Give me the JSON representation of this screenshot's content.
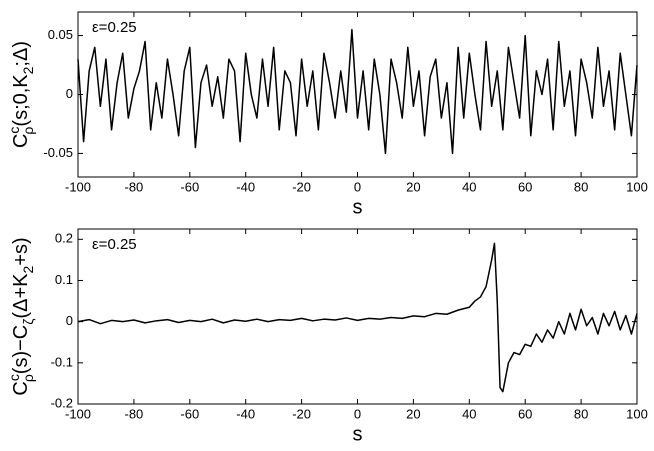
{
  "chart_data": [
    {
      "type": "line",
      "xlabel": "s",
      "ylabel": [
        "C",
        "c",
        "ρ",
        "(s;0,K",
        "2",
        ";Δ)"
      ],
      "annotation": "ε=0.25",
      "xlim": [
        -100,
        100
      ],
      "xticks": [
        -100,
        -80,
        -60,
        -40,
        -20,
        0,
        20,
        40,
        60,
        80,
        100
      ],
      "ylim": [
        -0.07,
        0.07
      ],
      "yticks": [
        -0.05,
        0,
        0.05
      ],
      "x": [
        -100,
        -98,
        -96,
        -94,
        -92,
        -90,
        -88,
        -86,
        -84,
        -82,
        -80,
        -78,
        -76,
        -74,
        -72,
        -70,
        -68,
        -66,
        -64,
        -62,
        -60,
        -58,
        -56,
        -54,
        -52,
        -50,
        -48,
        -46,
        -44,
        -42,
        -40,
        -38,
        -36,
        -34,
        -32,
        -30,
        -28,
        -26,
        -24,
        -22,
        -20,
        -18,
        -16,
        -14,
        -12,
        -10,
        -8,
        -6,
        -4,
        -2,
        0,
        2,
        4,
        6,
        8,
        10,
        12,
        14,
        16,
        18,
        20,
        22,
        24,
        26,
        28,
        30,
        32,
        34,
        36,
        38,
        40,
        42,
        44,
        46,
        48,
        50,
        52,
        54,
        56,
        58,
        60,
        62,
        64,
        66,
        68,
        70,
        72,
        74,
        76,
        78,
        80,
        82,
        84,
        86,
        88,
        90,
        92,
        94,
        96,
        98,
        100
      ],
      "series": [
        {
          "color": "#000000",
          "values": [
            0.03,
            -0.04,
            0.02,
            0.04,
            -0.01,
            0.03,
            -0.03,
            0.01,
            0.035,
            -0.02,
            0.005,
            0.02,
            0.045,
            -0.03,
            0.01,
            -0.02,
            0.03,
            0.0,
            -0.035,
            0.02,
            0.04,
            -0.045,
            0.01,
            0.025,
            -0.01,
            0.015,
            -0.02,
            0.03,
            0.02,
            -0.04,
            0.035,
            0.0,
            -0.02,
            0.03,
            -0.01,
            0.04,
            -0.03,
            0.02,
            0.01,
            -0.035,
            0.03,
            -0.01,
            0.02,
            -0.03,
            0.035,
            0.01,
            -0.02,
            0.02,
            -0.015,
            0.055,
            -0.02,
            0.02,
            -0.03,
            0.03,
            0.0,
            -0.05,
            0.03,
            0.01,
            -0.02,
            0.04,
            -0.01,
            0.02,
            -0.035,
            0.015,
            0.03,
            -0.02,
            0.01,
            -0.05,
            0.04,
            -0.02,
            0.035,
            0.0,
            -0.03,
            0.045,
            -0.01,
            0.02,
            -0.03,
            0.04,
            0.01,
            -0.02,
            0.05,
            -0.035,
            0.02,
            0.0,
            0.03,
            -0.03,
            0.045,
            -0.01,
            0.02,
            -0.035,
            0.03,
            0.01,
            -0.02,
            0.04,
            -0.01,
            0.02,
            -0.03,
            0.035,
            0.0,
            -0.035,
            0.025
          ]
        }
      ]
    },
    {
      "type": "line",
      "xlabel": "s",
      "ylabel": [
        "C",
        "c",
        "ρ",
        "(s)−C",
        "ζ",
        "(Δ+K",
        "2",
        "+s)"
      ],
      "annotation": "ε=0.25",
      "xlim": [
        -100,
        100
      ],
      "xticks": [
        -100,
        -80,
        -60,
        -40,
        -20,
        0,
        20,
        40,
        60,
        80,
        100
      ],
      "ylim": [
        -0.2,
        0.225
      ],
      "yticks": [
        -0.2,
        -0.1,
        0,
        0.1,
        0.2
      ],
      "x": [
        -100,
        -96,
        -92,
        -88,
        -84,
        -80,
        -76,
        -72,
        -68,
        -64,
        -60,
        -56,
        -52,
        -48,
        -44,
        -40,
        -36,
        -32,
        -28,
        -24,
        -20,
        -16,
        -12,
        -8,
        -4,
        0,
        4,
        8,
        12,
        16,
        20,
        24,
        28,
        32,
        36,
        40,
        42,
        44,
        46,
        48,
        49,
        50,
        51,
        52,
        54,
        56,
        58,
        60,
        62,
        64,
        66,
        68,
        70,
        72,
        74,
        76,
        78,
        80,
        82,
        84,
        86,
        88,
        90,
        92,
        94,
        96,
        98,
        100
      ],
      "series": [
        {
          "color": "#000000",
          "values": [
            0.0,
            0.005,
            -0.005,
            0.003,
            0.0,
            0.004,
            -0.003,
            0.002,
            0.005,
            -0.002,
            0.003,
            0.0,
            0.006,
            -0.003,
            0.004,
            0.001,
            0.006,
            0.0,
            0.005,
            0.003,
            0.008,
            0.002,
            0.006,
            0.004,
            0.009,
            0.003,
            0.008,
            0.006,
            0.01,
            0.008,
            0.014,
            0.012,
            0.02,
            0.018,
            0.028,
            0.035,
            0.05,
            0.06,
            0.085,
            0.15,
            0.19,
            0.05,
            -0.16,
            -0.17,
            -0.1,
            -0.075,
            -0.08,
            -0.055,
            -0.06,
            -0.03,
            -0.05,
            -0.02,
            -0.04,
            0.0,
            -0.03,
            0.02,
            -0.02,
            0.03,
            -0.01,
            0.01,
            -0.03,
            0.02,
            -0.01,
            0.025,
            -0.02,
            0.015,
            -0.03,
            0.02
          ]
        }
      ]
    }
  ]
}
